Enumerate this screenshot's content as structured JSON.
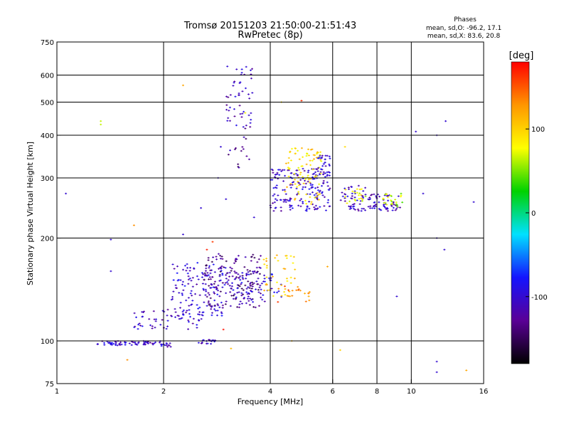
{
  "chart_data": {
    "type": "scatter",
    "title": "Tromsø 20151203 21:50:00-21:51:43",
    "subtitle": "RwPretec (8p)",
    "stats": {
      "heading": "Phases",
      "line1": "mean, sd,O: -96.2, 17.1",
      "line2": "mean, sd,X:  83.6, 20.8"
    },
    "xlabel": "Frequency [MHz]",
    "ylabel": "Stationary phase Virtual Height [km]",
    "x_scale": "log",
    "y_scale": "log",
    "xlim": [
      1,
      16
    ],
    "ylim": [
      75,
      750
    ],
    "x_ticks": [
      {
        "value": 1,
        "label": "1"
      },
      {
        "value": 2,
        "label": "2"
      },
      {
        "value": 4,
        "label": "4"
      },
      {
        "value": 6,
        "label": "6"
      },
      {
        "value": 8,
        "label": "8"
      },
      {
        "value": 10,
        "label": "10"
      },
      {
        "value": 16,
        "label": "16"
      }
    ],
    "y_ticks": [
      {
        "value": 75,
        "label": "75"
      },
      {
        "value": 100,
        "label": "100"
      },
      {
        "value": 200,
        "label": "200"
      },
      {
        "value": 300,
        "label": "300"
      },
      {
        "value": 400,
        "label": "400"
      },
      {
        "value": 500,
        "label": "500"
      },
      {
        "value": 600,
        "label": "600"
      },
      {
        "value": 750,
        "label": "750"
      }
    ],
    "x_gridlines": [
      2,
      4,
      6,
      8,
      10
    ],
    "y_gridlines": [
      100,
      200,
      300,
      400,
      500,
      600
    ],
    "grid": true,
    "colorbar": {
      "label": "[deg]",
      "range": [
        -180,
        180
      ],
      "ticks": [
        {
          "value": 100,
          "label": "100"
        },
        {
          "value": 0,
          "label": "0"
        },
        {
          "value": -100,
          "label": "-100"
        }
      ],
      "gradient": [
        "#000000",
        "#5a0096",
        "#1414ff",
        "#00e1ff",
        "#00d200",
        "#ffff00",
        "#ff9600",
        "#ff0000"
      ]
    },
    "clusters": [
      {
        "fmin": 1.3,
        "fmax": 1.9,
        "hmin": 97,
        "hmax": 100,
        "phase": -105,
        "count": 60
      },
      {
        "fmin": 1.9,
        "fmax": 2.1,
        "hmin": 96,
        "hmax": 100,
        "phase": -105,
        "count": 15
      },
      {
        "fmin": 2.5,
        "fmax": 2.8,
        "hmin": 98,
        "hmax": 101,
        "phase": -105,
        "count": 18
      },
      {
        "fmin": 1.65,
        "fmax": 2.6,
        "hmin": 108,
        "hmax": 125,
        "phase": -105,
        "count": 60
      },
      {
        "fmin": 2.1,
        "fmax": 3.0,
        "hmin": 118,
        "hmax": 170,
        "phase": -100,
        "count": 130
      },
      {
        "fmin": 2.6,
        "fmax": 3.8,
        "hmin": 125,
        "hmax": 180,
        "phase": -130,
        "count": 160
      },
      {
        "fmin": 3.0,
        "fmax": 4.3,
        "hmin": 130,
        "hmax": 160,
        "phase": -100,
        "count": 70
      },
      {
        "fmin": 3.8,
        "fmax": 4.7,
        "hmin": 135,
        "hmax": 180,
        "phase": 105,
        "count": 40
      },
      {
        "fmin": 4.1,
        "fmax": 5.2,
        "hmin": 130,
        "hmax": 145,
        "phase": 140,
        "count": 20
      },
      {
        "fmin": 3.0,
        "fmax": 3.6,
        "hmin": 420,
        "hmax": 640,
        "phase": -110,
        "count": 50
      },
      {
        "fmin": 3.0,
        "fmax": 3.5,
        "hmin": 320,
        "hmax": 420,
        "phase": -125,
        "count": 15
      },
      {
        "fmin": 4.0,
        "fmax": 5.9,
        "hmin": 240,
        "hmax": 320,
        "phase": -105,
        "count": 180
      },
      {
        "fmin": 4.4,
        "fmax": 5.6,
        "hmin": 250,
        "hmax": 370,
        "phase": 95,
        "count": 90
      },
      {
        "fmin": 5.4,
        "fmax": 5.9,
        "hmin": 300,
        "hmax": 350,
        "phase": -100,
        "count": 30
      },
      {
        "fmin": 6.3,
        "fmax": 7.6,
        "hmin": 240,
        "hmax": 285,
        "phase": -105,
        "count": 50
      },
      {
        "fmin": 6.5,
        "fmax": 7.5,
        "hmin": 250,
        "hmax": 280,
        "phase": 80,
        "count": 20
      },
      {
        "fmin": 7.6,
        "fmax": 9.3,
        "hmin": 240,
        "hmax": 270,
        "phase": -110,
        "count": 60
      },
      {
        "fmin": 8.3,
        "fmax": 9.5,
        "hmin": 245,
        "hmax": 270,
        "phase": 60,
        "count": 25
      }
    ],
    "isolated_points": [
      {
        "f": 1.06,
        "h": 270,
        "phase": -100
      },
      {
        "f": 1.33,
        "h": 440,
        "phase": 65
      },
      {
        "f": 1.33,
        "h": 430,
        "phase": 65
      },
      {
        "f": 1.42,
        "h": 198,
        "phase": -100
      },
      {
        "f": 1.42,
        "h": 160,
        "phase": -100
      },
      {
        "f": 1.58,
        "h": 88,
        "phase": 130
      },
      {
        "f": 1.65,
        "h": 218,
        "phase": 130
      },
      {
        "f": 2.27,
        "h": 560,
        "phase": 120
      },
      {
        "f": 2.27,
        "h": 205,
        "phase": -100
      },
      {
        "f": 2.55,
        "h": 245,
        "phase": -100
      },
      {
        "f": 2.65,
        "h": 185,
        "phase": 170
      },
      {
        "f": 2.75,
        "h": 195,
        "phase": 160
      },
      {
        "f": 2.85,
        "h": 300,
        "phase": -100
      },
      {
        "f": 2.9,
        "h": 370,
        "phase": -100
      },
      {
        "f": 2.95,
        "h": 108,
        "phase": 175
      },
      {
        "f": 3.0,
        "h": 260,
        "phase": -100
      },
      {
        "f": 3.1,
        "h": 95,
        "phase": 110
      },
      {
        "f": 3.4,
        "h": 465,
        "phase": 80
      },
      {
        "f": 3.6,
        "h": 230,
        "phase": -100
      },
      {
        "f": 4.3,
        "h": 500,
        "phase": 90
      },
      {
        "f": 4.6,
        "h": 100,
        "phase": 110
      },
      {
        "f": 4.9,
        "h": 505,
        "phase": 165
      },
      {
        "f": 5.8,
        "h": 165,
        "phase": 120
      },
      {
        "f": 6.3,
        "h": 94,
        "phase": 100
      },
      {
        "f": 6.5,
        "h": 370,
        "phase": 95
      },
      {
        "f": 9.1,
        "h": 135,
        "phase": -100
      },
      {
        "f": 10.3,
        "h": 410,
        "phase": -100
      },
      {
        "f": 10.8,
        "h": 270,
        "phase": -100
      },
      {
        "f": 11.8,
        "h": 400,
        "phase": -100
      },
      {
        "f": 11.8,
        "h": 200,
        "phase": -100
      },
      {
        "f": 11.8,
        "h": 87,
        "phase": -100
      },
      {
        "f": 11.8,
        "h": 81,
        "phase": -100
      },
      {
        "f": 12.5,
        "h": 440,
        "phase": -100
      },
      {
        "f": 12.4,
        "h": 185,
        "phase": -100
      },
      {
        "f": 14.3,
        "h": 82,
        "phase": 120
      },
      {
        "f": 15.0,
        "h": 255,
        "phase": -100
      }
    ]
  }
}
